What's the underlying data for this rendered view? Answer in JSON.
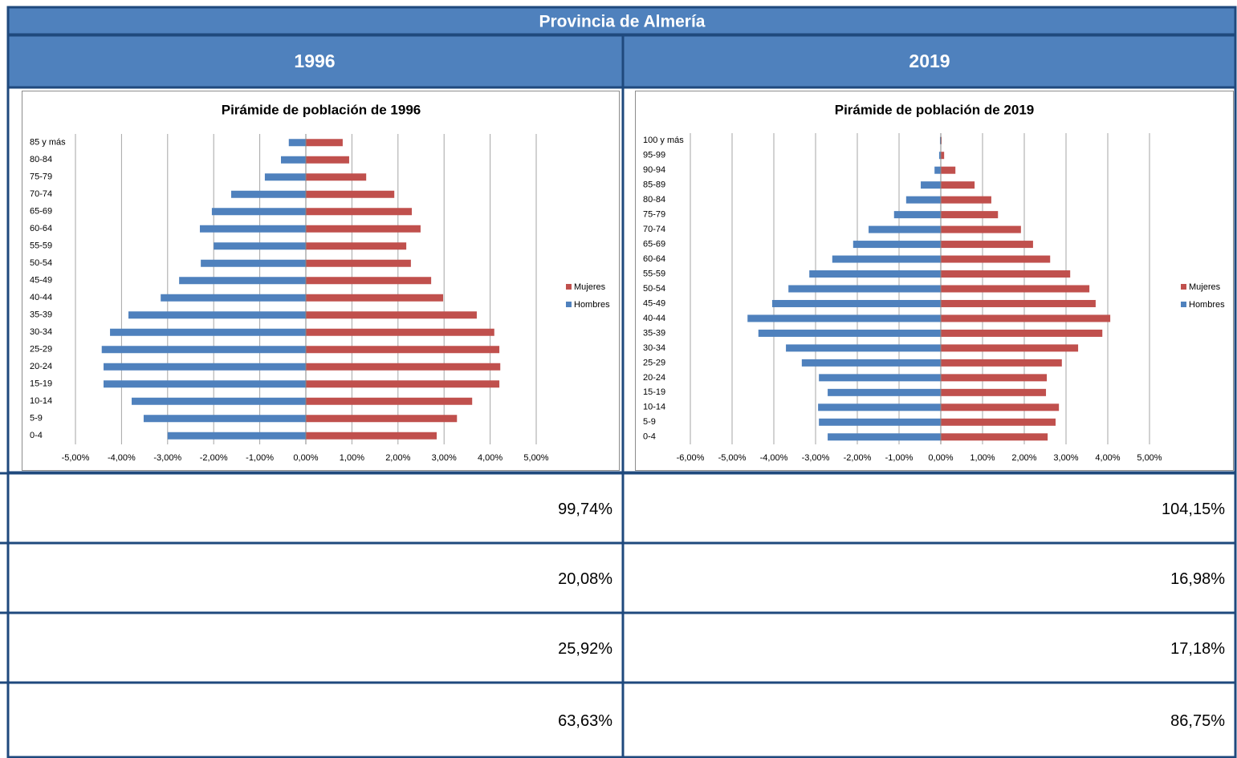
{
  "header": {
    "title": "Provincia de Almería",
    "columns": [
      "1996",
      "2019"
    ]
  },
  "chart_data": [
    {
      "type": "bar",
      "orientation": "horizontal",
      "title": "Pirámide de población de 1996",
      "categories": [
        "0-4",
        "5-9",
        "10-14",
        "15-19",
        "20-24",
        "25-29",
        "30-34",
        "35-39",
        "40-44",
        "45-49",
        "50-54",
        "55-59",
        "60-64",
        "65-69",
        "70-74",
        "75-79",
        "80-84",
        "85 y más"
      ],
      "series": [
        {
          "name": "Hombres",
          "color": "#4f81bd",
          "values": [
            -3.0,
            -3.52,
            -3.78,
            -4.39,
            -4.39,
            -4.43,
            -4.25,
            -3.85,
            -3.15,
            -2.75,
            -2.28,
            -2.0,
            -2.3,
            -2.04,
            -1.62,
            -0.89,
            -0.54,
            -0.37
          ]
        },
        {
          "name": "Mujeres",
          "color": "#c0504d",
          "values": [
            2.84,
            3.28,
            3.61,
            4.2,
            4.22,
            4.2,
            4.09,
            3.71,
            2.98,
            2.72,
            2.28,
            2.18,
            2.49,
            2.3,
            1.92,
            1.31,
            0.94,
            0.8
          ]
        }
      ],
      "xlim": [
        -5,
        5
      ],
      "xticks": [
        {
          "value": -5,
          "label": "-5,00%"
        },
        {
          "value": -4,
          "label": "-4,00%"
        },
        {
          "value": -3,
          "label": "-3,00%"
        },
        {
          "value": -2,
          "label": "-2,00%"
        },
        {
          "value": -1,
          "label": "-1,00%"
        },
        {
          "value": 0,
          "label": "0,00%"
        },
        {
          "value": 1,
          "label": "1,00%"
        },
        {
          "value": 2,
          "label": "2,00%"
        },
        {
          "value": 3,
          "label": "3,00%"
        },
        {
          "value": 4,
          "label": "4,00%"
        },
        {
          "value": 5,
          "label": "5,00%"
        }
      ],
      "grid": true,
      "legend": "right"
    },
    {
      "type": "bar",
      "orientation": "horizontal",
      "title": "Pirámide de población de 2019",
      "categories": [
        "0-4",
        "5-9",
        "10-14",
        "15-19",
        "20-24",
        "25-29",
        "30-34",
        "35-39",
        "40-44",
        "45-49",
        "50-54",
        "55-59",
        "60-64",
        "65-69",
        "70-74",
        "75-79",
        "80-84",
        "85-89",
        "90-94",
        "95-99",
        "100 y más"
      ],
      "series": [
        {
          "name": "Hombres",
          "color": "#4f81bd",
          "values": [
            -2.71,
            -2.92,
            -2.94,
            -2.71,
            -2.92,
            -3.33,
            -3.71,
            -4.37,
            -4.63,
            -4.04,
            -3.65,
            -3.15,
            -2.6,
            -2.1,
            -1.73,
            -1.12,
            -0.83,
            -0.48,
            -0.15,
            -0.04,
            -0.02
          ]
        },
        {
          "name": "Mujeres",
          "color": "#c0504d",
          "values": [
            2.56,
            2.75,
            2.83,
            2.52,
            2.54,
            2.9,
            3.29,
            3.87,
            4.06,
            3.71,
            3.56,
            3.1,
            2.62,
            2.21,
            1.92,
            1.37,
            1.21,
            0.81,
            0.35,
            0.08,
            0.02
          ]
        }
      ],
      "xlim": [
        -6,
        5
      ],
      "xticks": [
        {
          "value": -6,
          "label": "-6,00%"
        },
        {
          "value": -5,
          "label": "-5,00%"
        },
        {
          "value": -4,
          "label": "-4,00%"
        },
        {
          "value": -3,
          "label": "-3,00%"
        },
        {
          "value": -2,
          "label": "-2,00%"
        },
        {
          "value": -1,
          "label": "-1,00%"
        },
        {
          "value": 0,
          "label": "0,00%"
        },
        {
          "value": 1,
          "label": "1,00%"
        },
        {
          "value": 2,
          "label": "2,00%"
        },
        {
          "value": 3,
          "label": "3,00%"
        },
        {
          "value": 4,
          "label": "4,00%"
        },
        {
          "value": 5,
          "label": "5,00%"
        }
      ],
      "grid": true,
      "legend": "right"
    }
  ],
  "table": {
    "rows": [
      [
        "99,74%",
        "104,15%"
      ],
      [
        "20,08%",
        "16,98%"
      ],
      [
        "25,92%",
        "17,18%"
      ],
      [
        "63,63%",
        "86,75%"
      ]
    ]
  }
}
